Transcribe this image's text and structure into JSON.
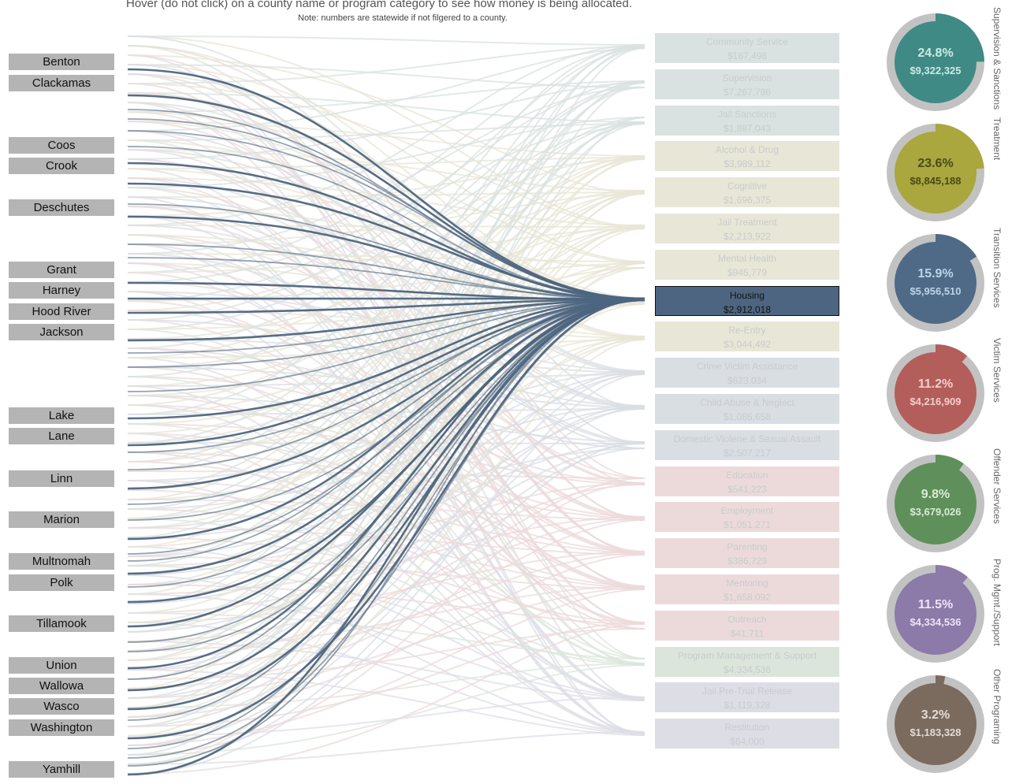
{
  "title": "Hover (do not click) on a county name or program category to see how  money is being allocated.",
  "note": "Note: numbers are statewide if not filgered to a county.",
  "counties": [
    "Benton",
    "Clackamas",
    "Coos",
    "Crook",
    "Deschutes",
    "Grant",
    "Harney",
    "Hood River",
    "Jackson",
    "Lake",
    "Lane",
    "Linn",
    "Marion",
    "Multnomah",
    "Polk",
    "Tillamook",
    "Union",
    "Wallowa",
    "Wasco",
    "Washington",
    "Yamhill"
  ],
  "programs": [
    {
      "name": "Community Service",
      "value": "$167,496",
      "group": 0
    },
    {
      "name": "Supervision",
      "value": "$7,267,786",
      "group": 0
    },
    {
      "name": "Jail Sanctions",
      "value": "$1,887,043",
      "group": 0
    },
    {
      "name": "Alcohol & Drug",
      "value": "$3,989,112",
      "group": 1
    },
    {
      "name": "Cognitive",
      "value": "$1,696,375",
      "group": 1
    },
    {
      "name": "Jail Treatment",
      "value": "$2,213,922",
      "group": 1
    },
    {
      "name": "Mental Health",
      "value": "$945,779",
      "group": 1
    },
    {
      "name": "Housing",
      "value": "$2,912,018",
      "group": 2,
      "active": true
    },
    {
      "name": "Re-Entry",
      "value": "$3,044,492",
      "group": 2
    },
    {
      "name": "Crime Victim Assistance",
      "value": "$623,034",
      "group": 3
    },
    {
      "name": "Child Abuse & Neglect",
      "value": "$1,086,658",
      "group": 3
    },
    {
      "name": "Domestic Violene & Sexual Assault",
      "value": "$2,507,217",
      "group": 3
    },
    {
      "name": "Education",
      "value": "$541,223",
      "group": 4
    },
    {
      "name": "Employment",
      "value": "$1,051,271",
      "group": 4
    },
    {
      "name": "Parenting",
      "value": "$386,729",
      "group": 4
    },
    {
      "name": "Mentoring",
      "value": "$1,658,092",
      "group": 4
    },
    {
      "name": "Outreach",
      "value": "$41,711",
      "group": 4
    },
    {
      "name": "Program Management & Support",
      "value": "$4,334,536",
      "group": 5
    },
    {
      "name": "Jail Pre-Trial Release",
      "value": "$1,119,328",
      "group": 6
    },
    {
      "name": "Restitution",
      "value": "$64,000",
      "group": 6
    }
  ],
  "categories": [
    {
      "name": "Supervision & Sanctions",
      "pct": "24.8%",
      "amount": "$9,322,325",
      "fraction": 0.248,
      "color": "#3f8a84",
      "text_color": "#cdeae6"
    },
    {
      "name": "Treatment",
      "pct": "23.6%",
      "amount": "$8,845,188",
      "fraction": 0.236,
      "color": "#a9a73d",
      "text_color": "#4a4a1e"
    },
    {
      "name": "Transition Services",
      "pct": "15.9%",
      "amount": "$5,956,510",
      "fraction": 0.159,
      "color": "#4f6a86",
      "text_color": "#bcd3ea"
    },
    {
      "name": "Victim Services",
      "pct": "11.2%",
      "amount": "$4,216,909",
      "fraction": 0.112,
      "color": "#b35e5a",
      "text_color": "#f1cfcd"
    },
    {
      "name": "Offender Services",
      "pct": "9.8%",
      "amount": "$3,679,026",
      "fraction": 0.098,
      "color": "#5f8f5a",
      "text_color": "#d7ecd4"
    },
    {
      "name": "Prog. Mgmt./Support",
      "pct": "11.5%",
      "amount": "$4,334,536",
      "fraction": 0.115,
      "color": "#8c7aa8",
      "text_color": "#ece5f6"
    },
    {
      "name": "Other Programing",
      "pct": "3.2%",
      "amount": "$1,183,328",
      "fraction": 0.032,
      "color": "#7b6a5e",
      "text_color": "#e3dbd4"
    }
  ],
  "colors": {
    "group_fills": [
      "#d9e2e0",
      "#e8e6d6",
      "#e8e6d6",
      "#d9dee3",
      "#ecdadb",
      "#dce5dc",
      "#dddde6",
      "#e1e1e1"
    ],
    "highlight": "#4d6580",
    "county_box": "#b4b4b4",
    "donut_ring": "#c2c2c2"
  },
  "chart_data": {
    "type": "sankey",
    "highlighted_target": "Housing",
    "title": "Hover (do not click) on a county name or program category to see how  money is being allocated.",
    "note": "Note: numbers are statewide if not filgered to a county.",
    "sources": [
      "Benton",
      "Clackamas",
      "Coos",
      "Crook",
      "Deschutes",
      "Grant",
      "Harney",
      "Hood River",
      "Jackson",
      "Lake",
      "Lane",
      "Linn",
      "Marion",
      "Multnomah",
      "Polk",
      "Tillamook",
      "Union",
      "Wallowa",
      "Wasco",
      "Washington",
      "Yamhill"
    ],
    "targets": [
      {
        "name": "Community Service",
        "value": 167496
      },
      {
        "name": "Supervision",
        "value": 7267786
      },
      {
        "name": "Jail Sanctions",
        "value": 1887043
      },
      {
        "name": "Alcohol & Drug",
        "value": 3989112
      },
      {
        "name": "Cognitive",
        "value": 1696375
      },
      {
        "name": "Jail Treatment",
        "value": 2213922
      },
      {
        "name": "Mental Health",
        "value": 945779
      },
      {
        "name": "Housing",
        "value": 2912018
      },
      {
        "name": "Re-Entry",
        "value": 3044492
      },
      {
        "name": "Crime Victim Assistance",
        "value": 623034
      },
      {
        "name": "Child Abuse & Neglect",
        "value": 1086658
      },
      {
        "name": "Domestic Violene & Sexual Assault",
        "value": 2507217
      },
      {
        "name": "Education",
        "value": 541223
      },
      {
        "name": "Employment",
        "value": 1051271
      },
      {
        "name": "Parenting",
        "value": 386729
      },
      {
        "name": "Mentoring",
        "value": 1658092
      },
      {
        "name": "Outreach",
        "value": 41711
      },
      {
        "name": "Program Management & Support",
        "value": 4334536
      },
      {
        "name": "Jail Pre-Trial Release",
        "value": 1119328
      },
      {
        "name": "Restitution",
        "value": 64000
      }
    ],
    "category_totals": [
      {
        "name": "Supervision & Sanctions",
        "pct": 24.8,
        "value": 9322325
      },
      {
        "name": "Treatment",
        "pct": 23.6,
        "value": 8845188
      },
      {
        "name": "Transition Services",
        "pct": 15.9,
        "value": 5956510
      },
      {
        "name": "Victim Services",
        "pct": 11.2,
        "value": 4216909
      },
      {
        "name": "Offender Services",
        "pct": 9.8,
        "value": 3679026
      },
      {
        "name": "Prog. Mgmt./Support",
        "pct": 11.5,
        "value": 4334536
      },
      {
        "name": "Other Programing",
        "pct": 3.2,
        "value": 1183328
      }
    ]
  }
}
